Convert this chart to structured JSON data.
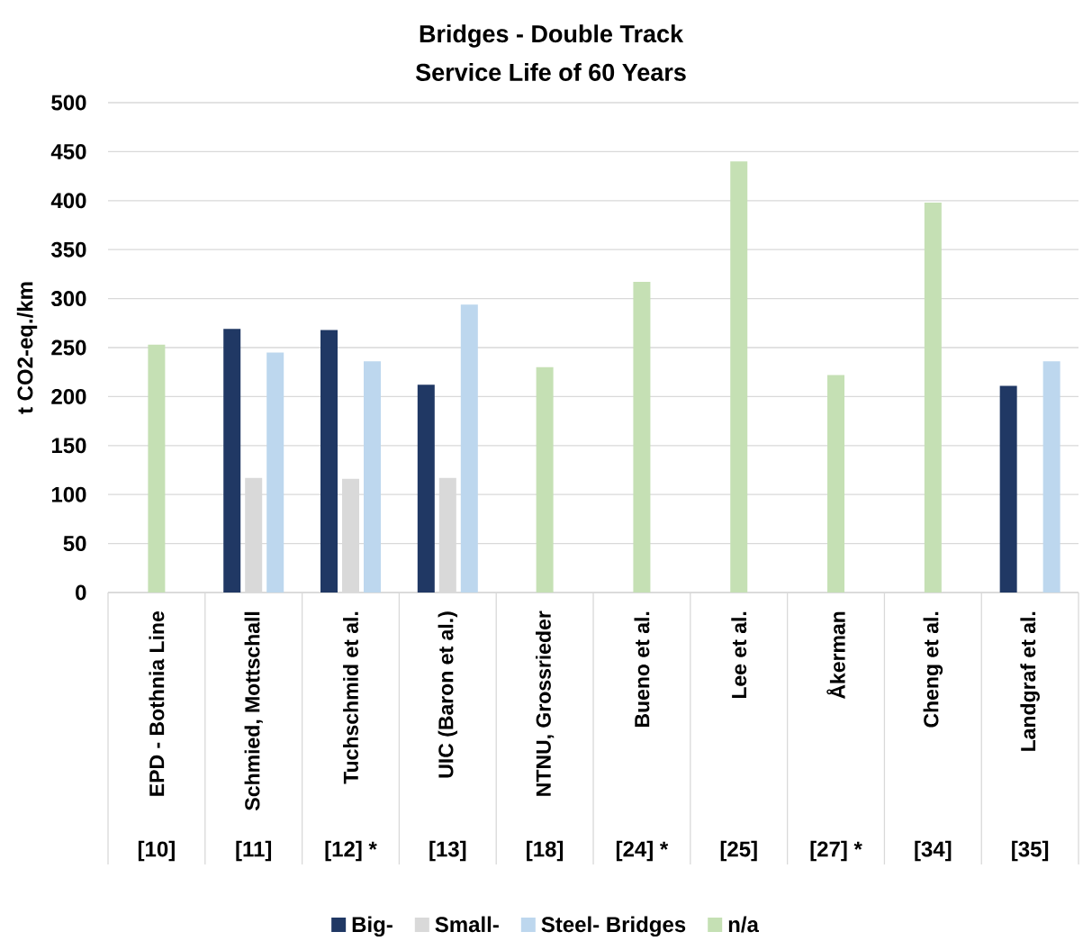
{
  "chart_data": {
    "type": "bar",
    "title": "Bridges - Double Track",
    "subtitle": "Service Life of 60 Years",
    "ylabel": "t CO2-eq./km",
    "categories": [
      "EPD - Bothnia Line",
      "Schmied, Mottschall",
      "Tuchschmid et al.",
      "UIC (Baron et al.)",
      "NTNU, Grossrieder",
      "Bueno et al.",
      "Lee et al.",
      "Åkerman",
      "Cheng et al.",
      "Landgraf et al."
    ],
    "series": [
      {
        "name": "Big-",
        "color": "#203864",
        "values": [
          null,
          269,
          268,
          212,
          null,
          null,
          null,
          null,
          null,
          211
        ]
      },
      {
        "name": "Small-",
        "color": "#d9d9d9",
        "values": [
          null,
          117,
          116,
          117,
          null,
          null,
          null,
          null,
          null,
          null
        ]
      },
      {
        "name": "Steel- Bridges",
        "color": "#bdd7ee",
        "values": [
          null,
          245,
          236,
          294,
          null,
          null,
          null,
          null,
          null,
          236
        ]
      },
      {
        "name": "n/a",
        "color": "#c5e0b4",
        "values": [
          253,
          null,
          null,
          null,
          230,
          317,
          440,
          222,
          398,
          null
        ]
      }
    ],
    "ylim": [
      0,
      500
    ],
    "yticks": [
      0,
      50,
      100,
      150,
      200,
      250,
      300,
      350,
      400,
      450,
      500
    ],
    "grid": "y",
    "legend": "bottom",
    "annotations": [
      "[10]",
      "[11]",
      "[12] *",
      "[13]",
      "[18]",
      "[24] *",
      "[25]",
      "[27] *",
      "[34]",
      "[35]"
    ]
  }
}
